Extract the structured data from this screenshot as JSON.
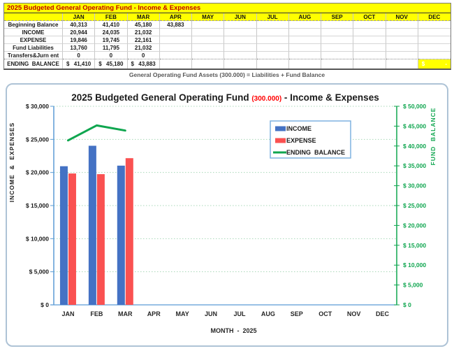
{
  "months": [
    "JAN",
    "FEB",
    "MAR",
    "APR",
    "MAY",
    "JUN",
    "JUL",
    "AUG",
    "SEP",
    "OCT",
    "NOV",
    "DEC"
  ],
  "table": {
    "title": "2025 Budgeted General Operating Fund - Income & Expenses",
    "rows": [
      {
        "label": "Beginning Balance",
        "values": [
          "40,313",
          "41,410",
          "45,180",
          "43,883",
          "",
          "",
          "",
          "",
          "",
          "",
          "",
          ""
        ]
      },
      {
        "label": "INCOME",
        "values": [
          "20,944",
          "24,035",
          "21,032",
          "",
          "",
          "",
          "",
          "",
          "",
          "",
          "",
          ""
        ]
      },
      {
        "label": "EXPENSE",
        "values": [
          "19,846",
          "19,745",
          "22,161",
          "",
          "",
          "",
          "",
          "",
          "",
          "",
          "",
          ""
        ]
      },
      {
        "label": "Fund Liabilities",
        "values": [
          "13,760",
          "11,795",
          "21,032",
          "",
          "",
          "",
          "",
          "",
          "",
          "",
          "",
          ""
        ]
      },
      {
        "label": "Transfers&Jurn ent",
        "values": [
          "0",
          "0",
          "0",
          "",
          "",
          "",
          "",
          "",
          "",
          "",
          "",
          ""
        ]
      }
    ],
    "ending_row": {
      "label": "ENDING  BALANCE",
      "cells": [
        {
          "symbol": "$",
          "amount": "41,410"
        },
        {
          "symbol": "$",
          "amount": "45,180"
        },
        {
          "symbol": "$",
          "amount": "43,883"
        },
        {},
        {},
        {},
        {},
        {},
        {},
        {},
        {},
        {
          "symbol": "$",
          "amount": "-",
          "highlight": true
        }
      ]
    },
    "footnote": "General Operating Fund Assets (300.000) = Liabilities + Fund Balance"
  },
  "chart_data": {
    "type": "combo-bar-line",
    "title_parts": {
      "prefix": "2025 Budgeted General Operating Fund ",
      "fund_code": "(300.000)",
      "suffix": " - Income & Expenses",
      "fund_code_color": "#FF0000",
      "title_color": "#1a1a1a"
    },
    "categories": [
      "JAN",
      "FEB",
      "MAR",
      "APR",
      "MAY",
      "JUN",
      "JUL",
      "AUG",
      "SEP",
      "OCT",
      "NOV",
      "DEC"
    ],
    "series": [
      {
        "name": "INCOME",
        "type": "bar",
        "axis": "left",
        "color": "#4472C4",
        "values": [
          20944,
          24035,
          21032,
          null,
          null,
          null,
          null,
          null,
          null,
          null,
          null,
          null
        ]
      },
      {
        "name": "EXPENSE",
        "type": "bar",
        "axis": "left",
        "color": "#FA5151",
        "values": [
          19846,
          19745,
          22161,
          null,
          null,
          null,
          null,
          null,
          null,
          null,
          null,
          null
        ]
      },
      {
        "name": "ENDING  BALANCE",
        "type": "line",
        "axis": "right",
        "color": "#0FA64F",
        "values": [
          41410,
          45180,
          43883,
          null,
          null,
          null,
          null,
          null,
          null,
          null,
          null,
          null
        ]
      }
    ],
    "left_axis": {
      "label": "INCOME  &  EXPENSES",
      "min": 0,
      "max": 30000,
      "step": 5000,
      "color": "#5B9BD5",
      "text_color": "#1a1a1a"
    },
    "right_axis": {
      "label": "FUND  BALANCE",
      "min": 0,
      "max": 50000,
      "step": 5000,
      "color": "#0FA64F"
    },
    "xlabel": "MONTH  -  2025",
    "grid": true,
    "gridline_color": "#A8D8B8",
    "legend_position": "middle-right",
    "legend_border_color": "#7EB2E0",
    "x_tick_color": "#262626"
  },
  "theme": {
    "highlight_yellow": "#FFFF00",
    "table_title_color": "#C00000",
    "chart_border": "#AEC3D6",
    "footnote_color": "#595959"
  }
}
